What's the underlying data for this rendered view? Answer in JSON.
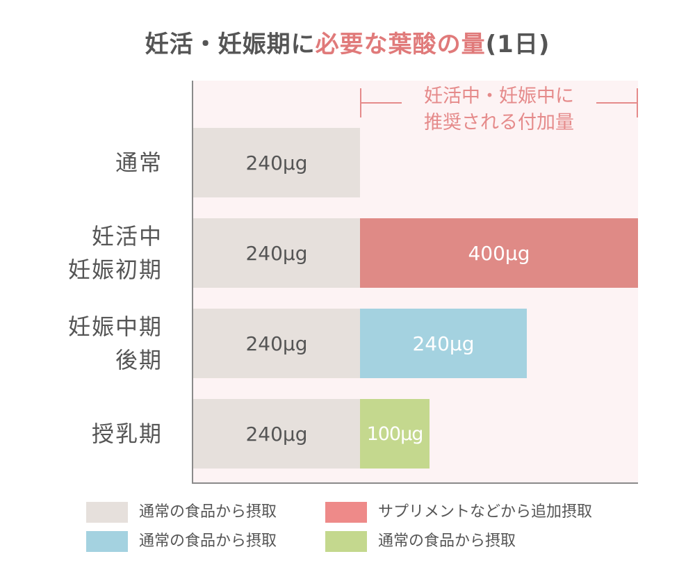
{
  "title": {
    "part1": "妊活・妊娠期に",
    "part2": "必要な葉酸の量",
    "part3": "(1日)"
  },
  "annotation": {
    "line1": "妊活中・妊娠中に",
    "line2": "推奨される付加量"
  },
  "chart_data": {
    "type": "bar",
    "orientation": "horizontal",
    "stacked": true,
    "unit": "μg",
    "categories": [
      [
        "通常"
      ],
      [
        "妊活中",
        "妊娠初期"
      ],
      [
        "妊娠中期",
        "後期"
      ],
      [
        "授乳期"
      ]
    ],
    "series": [
      {
        "name": "通常の食品から摂取",
        "values": [
          240,
          240,
          240,
          240
        ],
        "labels": [
          "240μg",
          "240μg",
          "240μg",
          "240μg"
        ]
      },
      {
        "name": "",
        "values": [
          0,
          400,
          240,
          100
        ],
        "labels": [
          "",
          "400μg",
          "240μg",
          "100μg"
        ]
      }
    ],
    "xlim": [
      0,
      640
    ],
    "grid": false,
    "legend": {
      "placement": "bottom",
      "items": [
        {
          "label": "通常の食品から摂取",
          "color": "#e6e0dc"
        },
        {
          "label": "サプリメントなどから追加摂取",
          "color": "#ee8a89"
        },
        {
          "label": "通常の食品から摂取",
          "color": "#a4d2e0"
        },
        {
          "label": "通常の食品から摂取",
          "color": "#c4d88e"
        }
      ]
    },
    "colors": {
      "base": "#e6e0dc",
      "add": [
        "#df8a86",
        "#a4d2e0",
        "#c4d88e"
      ],
      "highlight": "#e07a7a"
    }
  }
}
